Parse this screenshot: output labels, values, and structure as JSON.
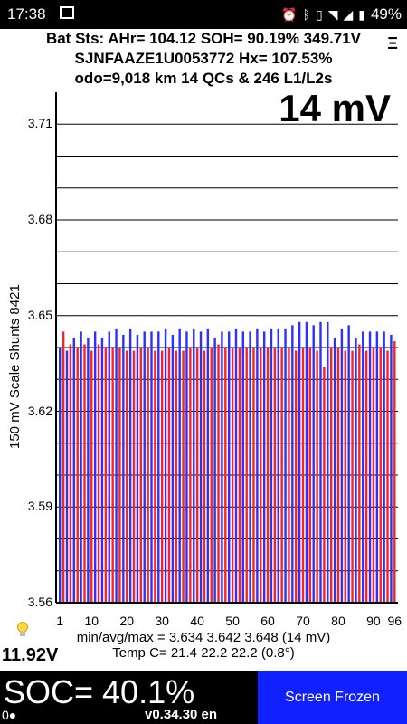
{
  "status_bar": {
    "time": "17:38",
    "battery": "49%"
  },
  "header": {
    "line1": "Bat Sts: AHr= 104.12 SOH= 90.19% 349.71V",
    "line2": "SJNFAAZE1U0053772   Hx= 107.53%",
    "line3": "odo=9,018 km  14 QCs & 246 L1/L2s",
    "menu_glyph": "Ξ"
  },
  "chart_badge": "14 mV",
  "axis_label": "150 mV Scale   Shunts 8421",
  "stats": {
    "line1": "min/avg/max = 3.634 3.642 3.648  (14 mV)",
    "line2": "Temp C= 21.4  22.2  22.2  (0.8°)"
  },
  "aux_voltage": "11.92V",
  "soc": "SOC= 40.1%",
  "indicator": "0●",
  "version": "v0.34.30 en",
  "frozen_button": "Screen Frozen",
  "colors": {
    "odd_cell": "#2f2fff",
    "even_cell": "#ff2020"
  },
  "chart_data": {
    "type": "bar",
    "ylim": [
      3.56,
      3.72
    ],
    "yticks": [
      "3.71",
      "3.68",
      "3.65",
      "3.62",
      "3.59",
      "3.56"
    ],
    "xticks": [
      "1",
      "10",
      "20",
      "30",
      "40",
      "50",
      "60",
      "70",
      "80",
      "90",
      "96"
    ],
    "values": [
      3.64,
      3.645,
      3.639,
      3.641,
      3.643,
      3.64,
      3.645,
      3.641,
      3.643,
      3.639,
      3.645,
      3.641,
      3.643,
      3.64,
      3.645,
      3.64,
      3.646,
      3.64,
      3.644,
      3.639,
      3.646,
      3.639,
      3.644,
      3.64,
      3.645,
      3.64,
      3.645,
      3.639,
      3.645,
      3.639,
      3.646,
      3.64,
      3.644,
      3.639,
      3.646,
      3.639,
      3.645,
      3.64,
      3.646,
      3.64,
      3.645,
      3.639,
      3.646,
      3.64,
      3.643,
      3.641,
      3.645,
      3.64,
      3.645,
      3.64,
      3.646,
      3.64,
      3.645,
      3.64,
      3.645,
      3.64,
      3.646,
      3.64,
      3.645,
      3.64,
      3.646,
      3.64,
      3.646,
      3.64,
      3.646,
      3.64,
      3.647,
      3.639,
      3.648,
      3.64,
      3.648,
      3.64,
      3.647,
      3.639,
      3.648,
      3.634,
      3.648,
      3.64,
      3.643,
      3.64,
      3.646,
      3.639,
      3.647,
      3.639,
      3.643,
      3.641,
      3.645,
      3.639,
      3.645,
      3.64,
      3.645,
      3.64,
      3.645,
      3.639,
      3.644,
      3.642
    ]
  }
}
